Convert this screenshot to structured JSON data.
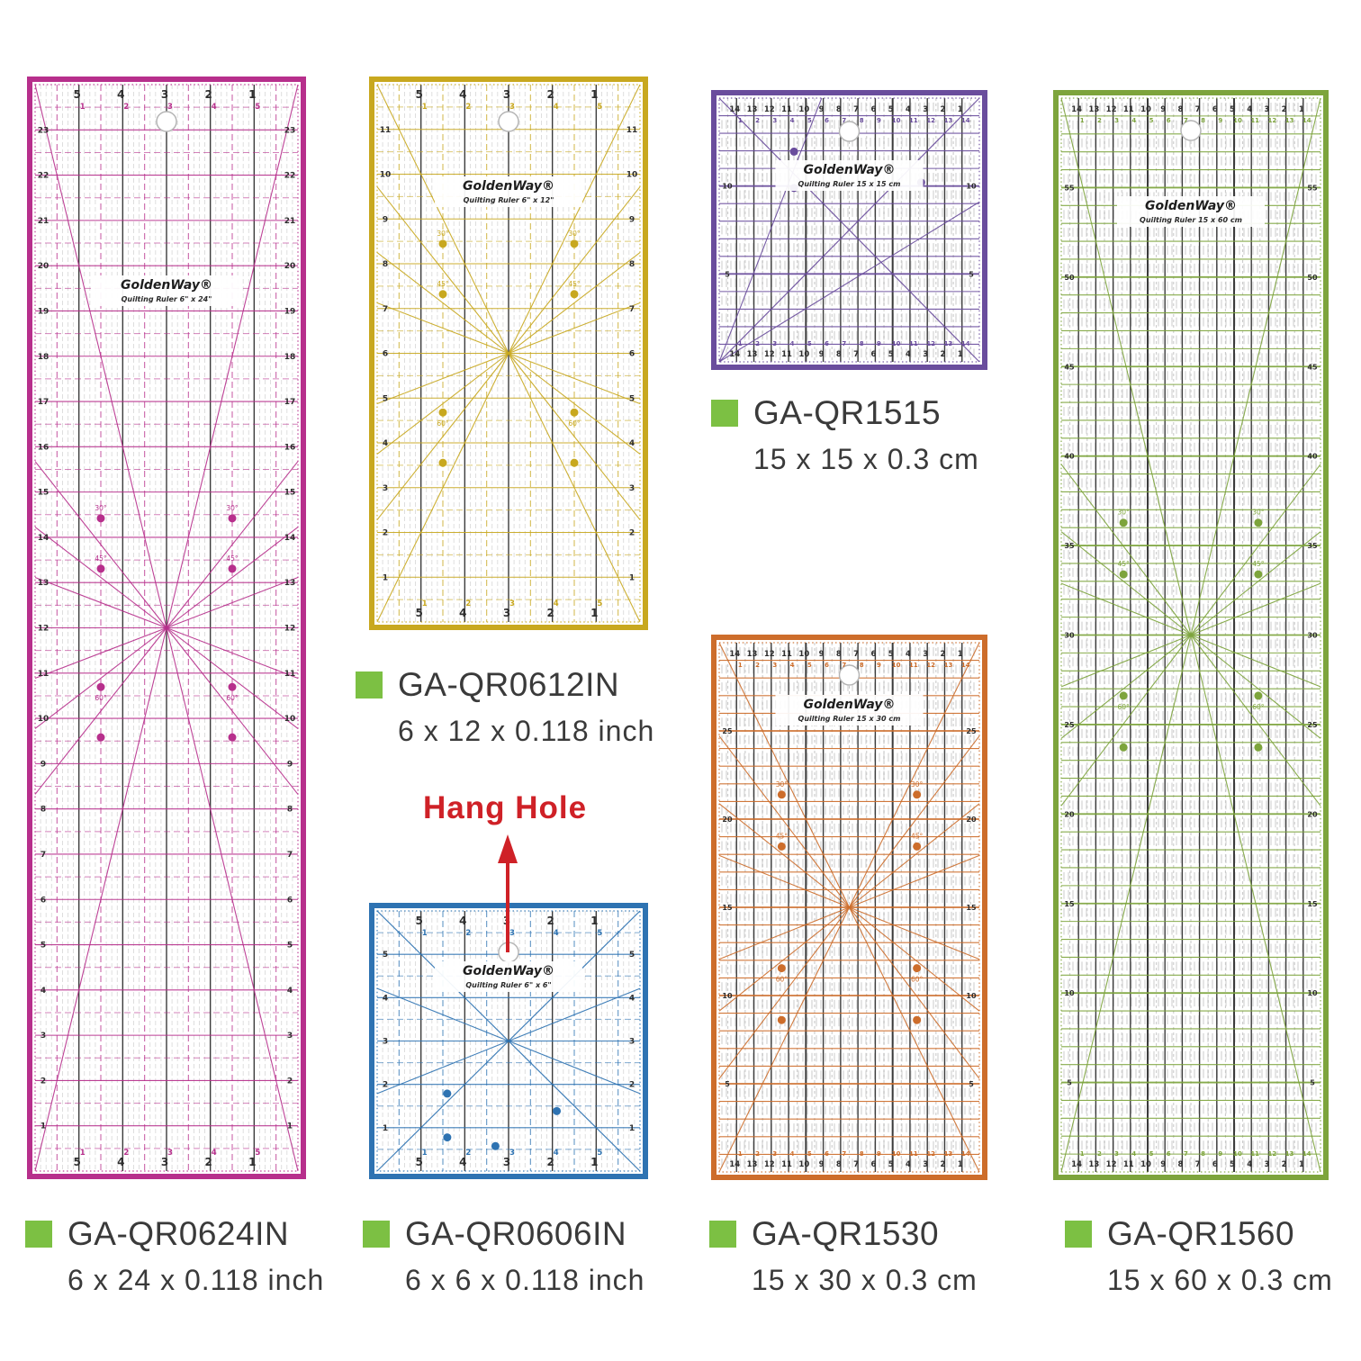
{
  "page": {
    "background": "#ffffff"
  },
  "bullet_color": "#7cc043",
  "label_text_color": "#3a3a3a",
  "annotation": {
    "text": "Hang Hole",
    "color": "#cf2127"
  },
  "angle_labels": [
    "30°",
    "45°",
    "60°"
  ],
  "products": [
    {
      "code": "GA-QR0624IN",
      "size": "6 x 24 x 0.118 inch",
      "brand_line": "GoldenWay®",
      "brand_sub": "Quilting Ruler 6\" x 24\"",
      "color": "#b72f8c",
      "cols": 6,
      "rows": 24,
      "unit": "inch",
      "shape": "star"
    },
    {
      "code": "GA-QR0612IN",
      "size": "6 x 12 x 0.118 inch",
      "brand_line": "GoldenWay®",
      "brand_sub": "Quilting Ruler 6\" x 12\"",
      "color": "#c8a81f",
      "cols": 6,
      "rows": 12,
      "unit": "inch",
      "shape": "star"
    },
    {
      "code": "GA-QR1515",
      "size": "15 x 15 x 0.3 cm",
      "brand_line": "GoldenWay®",
      "brand_sub": "Quilting Ruler 15 x 15 cm",
      "color": "#6a4d9d",
      "cols": 15,
      "rows": 15,
      "unit": "cm",
      "shape": "fan"
    },
    {
      "code": "GA-QR0606IN",
      "size": "6 x 6 x 0.118 inch",
      "brand_line": "GoldenWay®",
      "brand_sub": "Quilting Ruler 6\" x 6\"",
      "color": "#2e73b2",
      "cols": 6,
      "rows": 6,
      "unit": "inch",
      "shape": "cross"
    },
    {
      "code": "GA-QR1530",
      "size": "15 x 30 x 0.3 cm",
      "brand_line": "GoldenWay®",
      "brand_sub": "Quilting Ruler 15 x 30 cm",
      "color": "#cd6d2b",
      "cols": 15,
      "rows": 30,
      "unit": "cm",
      "shape": "star"
    },
    {
      "code": "GA-QR1560",
      "size": "15 x 60 x 0.3 cm",
      "brand_line": "GoldenWay®",
      "brand_sub": "Quilting Ruler 15 x 60 cm",
      "color": "#7da43c",
      "cols": 15,
      "rows": 60,
      "unit": "cm",
      "shape": "star"
    }
  ]
}
